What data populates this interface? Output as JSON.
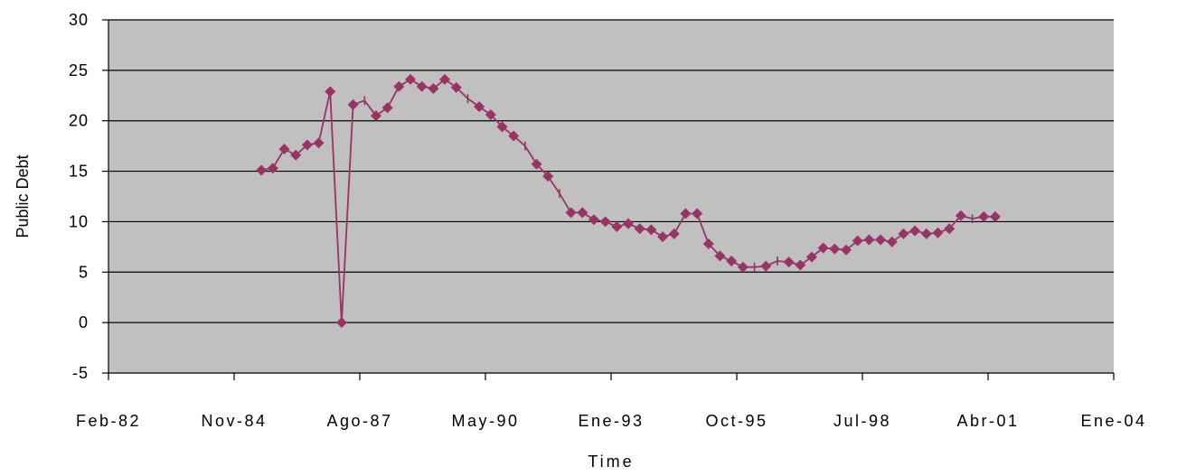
{
  "chart_data": {
    "type": "line",
    "xlabel": "Time",
    "ylabel": "Public Debt",
    "ylim": [
      -5,
      30
    ],
    "yticks": [
      -5,
      0,
      5,
      10,
      15,
      20,
      25,
      30
    ],
    "xticks": [
      "Feb-82",
      "Nov-84",
      "Ago-87",
      "May-90",
      "Ene-93",
      "Oct-95",
      "Jul-98",
      "Abr-01",
      "Ene-04"
    ],
    "xlim": [
      "1982-02",
      "2004-01"
    ],
    "grid": true,
    "plot_background": "#C0C0C0",
    "series": [
      {
        "color": "#993366",
        "marker": "diamond",
        "x": [
          "1985-06",
          "1985-09",
          "1985-12",
          "1986-03",
          "1986-06",
          "1986-09",
          "1986-12",
          "1987-03",
          "1987-06",
          "1987-09",
          "1987-12",
          "1988-03",
          "1988-06",
          "1988-09",
          "1988-12",
          "1989-03",
          "1989-06",
          "1989-09",
          "1989-12",
          "1990-03",
          "1990-06",
          "1990-09",
          "1990-12",
          "1991-03",
          "1991-06",
          "1991-09",
          "1991-12",
          "1992-03",
          "1992-06",
          "1992-09",
          "1992-12",
          "1993-03",
          "1993-06",
          "1993-09",
          "1993-12",
          "1994-03",
          "1994-06",
          "1994-09",
          "1994-12",
          "1995-03",
          "1995-06",
          "1995-09",
          "1995-12",
          "1996-03",
          "1996-06",
          "1996-09",
          "1996-12",
          "1997-03",
          "1997-06",
          "1997-09",
          "1997-12",
          "1998-03",
          "1998-06",
          "1998-09",
          "1998-12",
          "1999-03",
          "1999-06",
          "1999-09",
          "1999-12",
          "2000-03",
          "2000-06",
          "2000-09",
          "2000-12",
          "2001-03",
          "2001-06"
        ],
        "values": [
          15.1,
          15.3,
          17.2,
          16.6,
          17.6,
          17.8,
          22.9,
          0.0,
          21.6,
          22.0,
          20.5,
          21.3,
          23.4,
          24.1,
          23.4,
          23.2,
          24.1,
          23.3,
          22.2,
          21.4,
          20.6,
          19.4,
          18.5,
          17.5,
          15.7,
          14.5,
          12.8,
          10.9,
          10.9,
          10.2,
          10.0,
          9.5,
          9.8,
          9.3,
          9.2,
          8.5,
          8.8,
          10.8,
          10.8,
          7.8,
          6.6,
          6.1,
          5.5,
          5.5,
          5.6,
          6.1,
          6.0,
          5.7,
          6.5,
          7.4,
          7.3,
          7.2,
          8.1,
          8.2,
          8.2,
          8.0,
          8.8,
          9.1,
          8.8,
          8.9,
          9.3,
          10.6,
          10.3,
          10.5,
          10.5
        ],
        "markers": [
          true,
          true,
          true,
          true,
          true,
          true,
          true,
          true,
          true,
          false,
          true,
          true,
          true,
          true,
          true,
          true,
          true,
          true,
          false,
          true,
          true,
          true,
          true,
          false,
          true,
          true,
          false,
          true,
          true,
          true,
          true,
          true,
          true,
          true,
          true,
          true,
          true,
          true,
          true,
          true,
          true,
          true,
          true,
          false,
          true,
          false,
          true,
          true,
          true,
          true,
          true,
          true,
          true,
          true,
          true,
          true,
          true,
          true,
          true,
          true,
          true,
          true,
          false,
          true,
          true
        ]
      }
    ]
  }
}
